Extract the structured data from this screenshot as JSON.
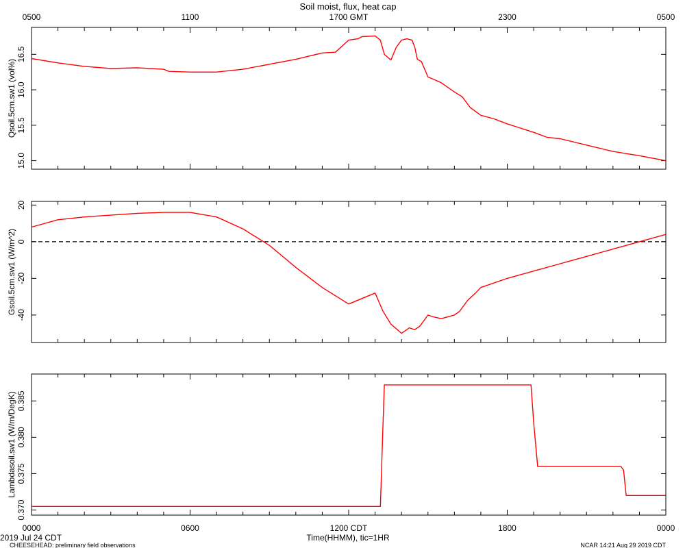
{
  "title": "Soil moist, flux, heat cap",
  "top_axis_ticks": [
    "0500",
    "1100",
    "1700 GMT",
    "2300",
    "0500"
  ],
  "bottom_axis_ticks": [
    "0000",
    "0600",
    "1200 CDT",
    "1800",
    "0000"
  ],
  "xlabel": "Time(HHMM), tic=1HR",
  "date_label": "2019 Jul 24 CDT",
  "footer_left": "CHEESEHEAD: preliminary field observations",
  "footer_right": "NCAR 14:21 Aug 29 2019 CDT",
  "colors": {
    "series": "#ff0000",
    "axes": "#000000",
    "zero_line": "#000000"
  },
  "chart_data": [
    {
      "type": "line",
      "ylabel": "Qsoil.5cm.sw1 (vol%)",
      "ylim": [
        14.88,
        16.88
      ],
      "yticks": [
        15.0,
        15.5,
        16.0,
        16.5
      ],
      "ytick_labels": [
        "15.0",
        "15.5",
        "16.0",
        "16.5"
      ],
      "x_hours": [
        0,
        1,
        2,
        3,
        4,
        5,
        5.2,
        6,
        7,
        8,
        9,
        10,
        11,
        11.5,
        12,
        12.35,
        12.5,
        13,
        13.2,
        13.35,
        13.6,
        13.8,
        14,
        14.2,
        14.3,
        14.4,
        14.5,
        14.6,
        14.75,
        15,
        15.2,
        15.5,
        16,
        16.3,
        16.6,
        17,
        17.5,
        18,
        18.5,
        19,
        19.5,
        20,
        21,
        22,
        23,
        24
      ],
      "series": [
        {
          "values": [
            16.44,
            16.38,
            16.33,
            16.3,
            16.31,
            16.29,
            16.26,
            16.25,
            16.25,
            16.29,
            16.36,
            16.43,
            16.52,
            16.53,
            16.7,
            16.72,
            16.75,
            16.76,
            16.7,
            16.5,
            16.42,
            16.6,
            16.7,
            16.72,
            16.71,
            16.7,
            16.6,
            16.43,
            16.4,
            16.18,
            16.15,
            16.1,
            15.97,
            15.9,
            15.75,
            15.64,
            15.59,
            15.52,
            15.46,
            15.4,
            15.33,
            15.31,
            15.22,
            15.13,
            15.07,
            15.0
          ]
        }
      ]
    },
    {
      "type": "line",
      "ylabel": "Gsoil.5cm.sw1 (W/m^2)",
      "ylim": [
        -55,
        22
      ],
      "yticks": [
        -40,
        -20,
        0,
        20
      ],
      "ytick_labels": [
        "-40",
        "-20",
        "0",
        "20"
      ],
      "reference_line": 0,
      "x_hours": [
        0,
        1,
        2,
        3,
        4,
        5,
        6,
        7,
        8,
        9,
        10,
        11,
        12,
        13,
        13.3,
        13.6,
        14,
        14.3,
        14.5,
        14.7,
        15,
        15.2,
        15.5,
        16,
        16.2,
        16.5,
        16.8,
        17,
        18,
        19,
        20,
        21,
        22,
        23,
        24
      ],
      "series": [
        {
          "values": [
            8,
            12,
            13.5,
            14.5,
            15.5,
            16,
            16,
            13.5,
            7,
            -2,
            -14,
            -25,
            -34,
            -28,
            -38,
            -45,
            -50,
            -47,
            -48,
            -46,
            -40,
            -41,
            -42,
            -40,
            -38,
            -32,
            -28,
            -25,
            -20,
            -16,
            -12,
            -8,
            -4,
            0,
            4
          ]
        }
      ]
    },
    {
      "type": "line",
      "ylabel": "Lambdasoil.sw1 (W/m/DegK)",
      "ylim": [
        0.3693,
        0.3887
      ],
      "yticks": [
        0.37,
        0.375,
        0.38,
        0.385
      ],
      "ytick_labels": [
        "0.370",
        "0.375",
        "0.380",
        "0.385"
      ],
      "x_hours": [
        0,
        13.2,
        13.3,
        13.35,
        18.9,
        19.0,
        19.15,
        22.3,
        22.4,
        22.5,
        24
      ],
      "series": [
        {
          "values": [
            0.3705,
            0.3705,
            0.382,
            0.3872,
            0.3872,
            0.382,
            0.376,
            0.376,
            0.3755,
            0.372,
            0.372
          ]
        }
      ]
    }
  ]
}
